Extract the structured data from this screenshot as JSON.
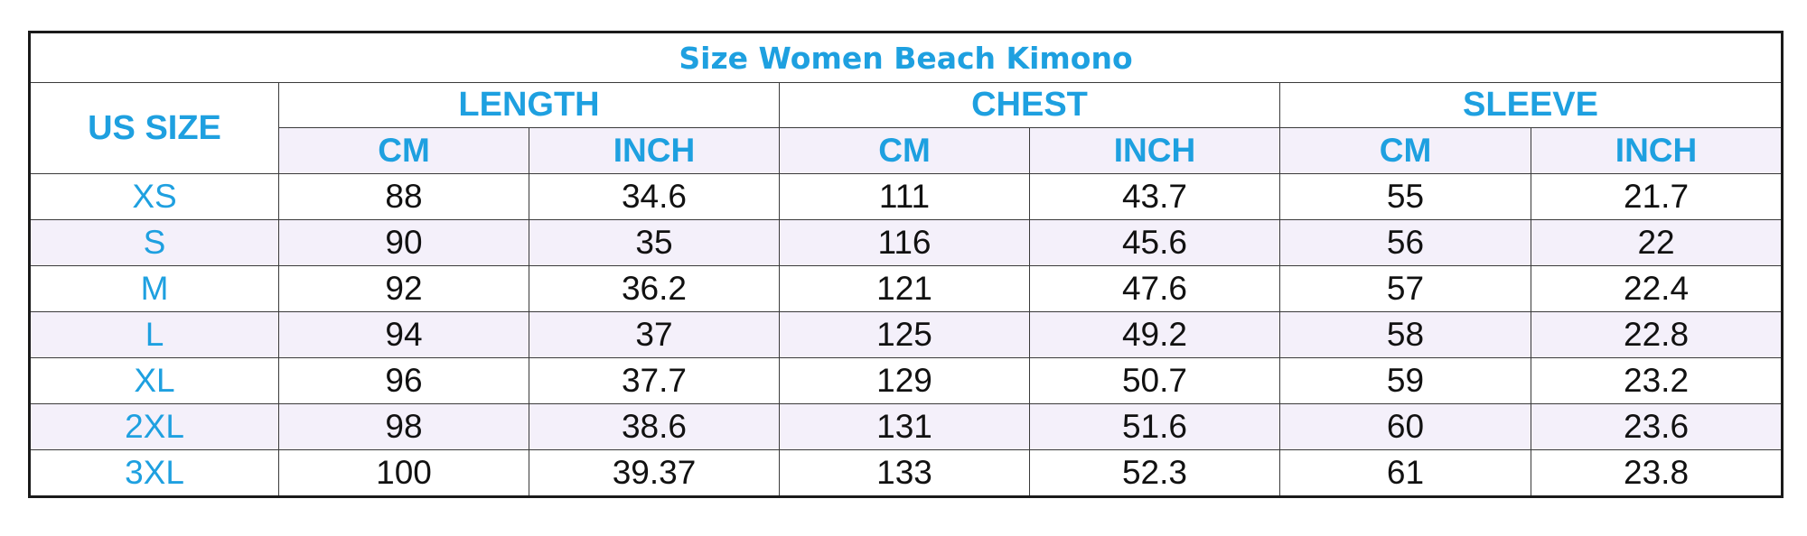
{
  "title": "Size Women Beach Kimono",
  "first_column_header": "US SIZE",
  "groups": [
    {
      "label": "LENGTH",
      "units": [
        "CM",
        "INCH"
      ]
    },
    {
      "label": "CHEST",
      "units": [
        "CM",
        "INCH"
      ]
    },
    {
      "label": "SLEEVE",
      "units": [
        "CM",
        "INCH"
      ]
    }
  ],
  "rows": [
    {
      "size": "XS",
      "values": [
        "88",
        "34.6",
        "111",
        "43.7",
        "55",
        "21.7"
      ]
    },
    {
      "size": "S",
      "values": [
        "90",
        "35",
        "116",
        "45.6",
        "56",
        "22"
      ]
    },
    {
      "size": "M",
      "values": [
        "92",
        "36.2",
        "121",
        "47.6",
        "57",
        "22.4"
      ]
    },
    {
      "size": "L",
      "values": [
        "94",
        "37",
        "125",
        "49.2",
        "58",
        "22.8"
      ]
    },
    {
      "size": "XL",
      "values": [
        "96",
        "37.7",
        "129",
        "50.7",
        "59",
        "23.2"
      ]
    },
    {
      "size": "2XL",
      "values": [
        "98",
        "38.6",
        "131",
        "51.6",
        "60",
        "23.6"
      ]
    },
    {
      "size": "3XL",
      "values": [
        "100",
        "39.37",
        "133",
        "52.3",
        "61",
        "23.8"
      ]
    }
  ],
  "colors": {
    "accent": "#1ea0e0",
    "stripe": "#f4f0fa",
    "border": "#1a1a1a",
    "text": "#111111"
  }
}
